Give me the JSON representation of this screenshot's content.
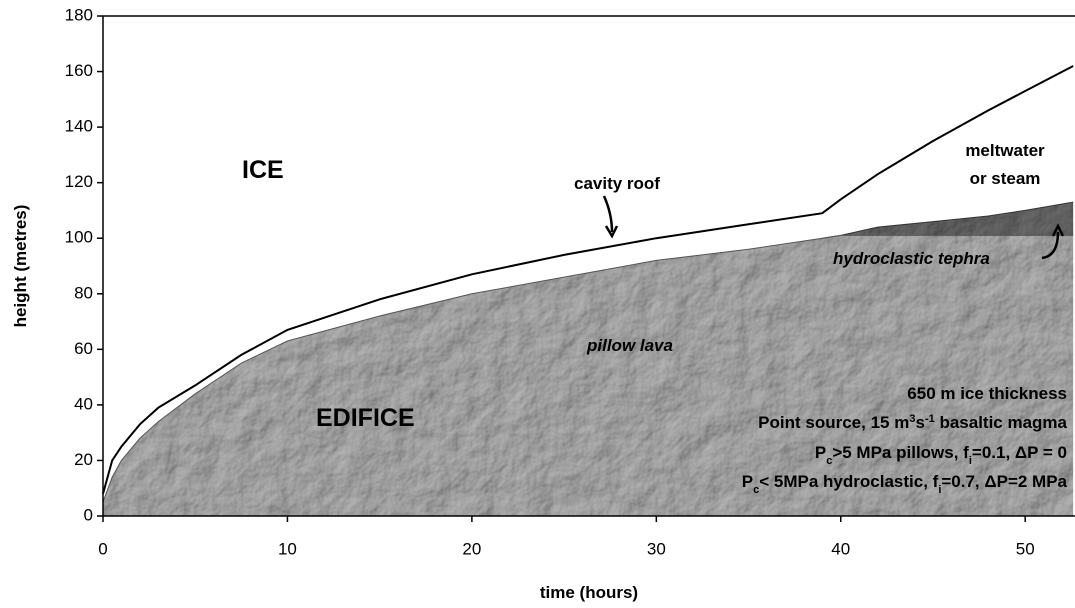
{
  "chart_data": {
    "type": "area",
    "xlabel": "time (hours)",
    "ylabel": "height (metres)",
    "x": [
      0,
      0.5,
      1,
      2,
      3,
      5,
      7.5,
      10,
      15,
      20,
      25,
      30,
      35,
      39,
      40,
      42,
      45,
      48,
      50,
      52.6
    ],
    "series": [
      {
        "name": "cavity roof",
        "color": "#000000",
        "values": [
          8,
          20,
          25,
          33,
          39,
          47,
          58,
          67,
          78,
          87,
          94,
          100,
          105,
          109,
          114,
          123,
          135,
          146,
          153,
          162
        ]
      },
      {
        "name": "pillow lava",
        "color": "#b8b8b8",
        "values": [
          5,
          14,
          20,
          28,
          34,
          44,
          55,
          63,
          72,
          80,
          86,
          92,
          96,
          100,
          101,
          101,
          101,
          101,
          101,
          101
        ]
      },
      {
        "name": "hydroclastic tephra",
        "color": "#6e6e6e",
        "values": [
          null,
          null,
          null,
          null,
          null,
          null,
          null,
          null,
          null,
          null,
          null,
          null,
          null,
          100,
          101,
          104,
          106,
          108,
          110,
          113
        ]
      }
    ],
    "xlim": [
      0,
      52.7
    ],
    "ylim": [
      0,
      180
    ],
    "xticks": [
      0,
      10,
      20,
      30,
      40,
      50
    ],
    "yticks": [
      0,
      20,
      40,
      60,
      80,
      100,
      120,
      140,
      160,
      180
    ],
    "labels": {
      "ice": "ICE",
      "edifice": "EDIFICE",
      "meltwater": [
        "meltwater",
        "or steam"
      ],
      "info": [
        [
          "650 m ice thickness"
        ],
        [
          "Point source, 15 m",
          "3",
          "s",
          "-1",
          " basaltic magma"
        ],
        [
          "P",
          "c",
          ">5 MPa pillows, f",
          "i",
          "=0.1, ΔP = 0"
        ],
        [
          "P",
          "c",
          "< 5MPa hydroclastic, f",
          "i",
          "=0.7, ΔP=2 MPa"
        ]
      ]
    }
  }
}
